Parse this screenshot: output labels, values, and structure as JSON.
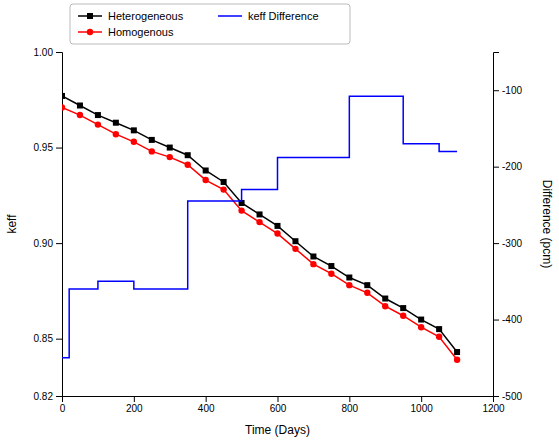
{
  "chart_data": {
    "type": "line",
    "x_label": "Time (Days)",
    "y_label": "keff",
    "y2_label": "Difference (pcm)",
    "xlim": [
      0,
      1200
    ],
    "xticks": [
      0,
      200,
      400,
      600,
      800,
      1000,
      1200
    ],
    "ylim": [
      0.82,
      1.0
    ],
    "yticks": [
      0.82,
      0.85,
      {
        "value": 0.9,
        "label": "0.90"
      },
      0.95,
      {
        "value": 1.0,
        "label": "1.00"
      }
    ],
    "y2lim": [
      -500,
      -50
    ],
    "y2ticks": [
      -500,
      -400,
      -300,
      -200,
      -100
    ],
    "grid": false,
    "legend": "upper left",
    "series": [
      {
        "name": "Heterogeneous",
        "color": "#000000",
        "marker": "square",
        "x": [
          0,
          50,
          100,
          150,
          200,
          250,
          300,
          350,
          400,
          450,
          500,
          550,
          600,
          650,
          700,
          750,
          800,
          850,
          900,
          950,
          1000,
          1050,
          1100
        ],
        "values": [
          0.977,
          0.972,
          0.967,
          0.963,
          0.959,
          0.954,
          0.95,
          0.946,
          0.938,
          0.932,
          0.921,
          0.915,
          0.909,
          0.901,
          0.893,
          0.888,
          0.882,
          0.878,
          0.871,
          0.866,
          0.86,
          0.855,
          0.843
        ]
      },
      {
        "name": "Homogenous",
        "color": "#ff0000",
        "marker": "circle",
        "x": [
          0,
          50,
          100,
          150,
          200,
          250,
          300,
          350,
          400,
          450,
          500,
          550,
          600,
          650,
          700,
          750,
          800,
          850,
          900,
          950,
          1000,
          1050,
          1100
        ],
        "values": [
          0.971,
          0.967,
          0.962,
          0.957,
          0.953,
          0.948,
          0.945,
          0.941,
          0.933,
          0.928,
          0.917,
          0.911,
          0.905,
          0.897,
          0.889,
          0.884,
          0.878,
          0.874,
          0.867,
          0.862,
          0.856,
          0.851,
          0.839
        ]
      },
      {
        "name": "keff Difference",
        "color": "#0000ff",
        "axis": "y2",
        "x": [
          0,
          20,
          20,
          100,
          100,
          200,
          200,
          350,
          350,
          500,
          500,
          600,
          600,
          800,
          800,
          950,
          950,
          1050,
          1050,
          1100
        ],
        "values": [
          -450,
          -450,
          -360,
          -360,
          -350,
          -350,
          -360,
          -360,
          -245,
          -245,
          -230,
          -230,
          -188,
          -188,
          -108,
          -108,
          -170,
          -170,
          -180,
          -180
        ]
      }
    ]
  }
}
